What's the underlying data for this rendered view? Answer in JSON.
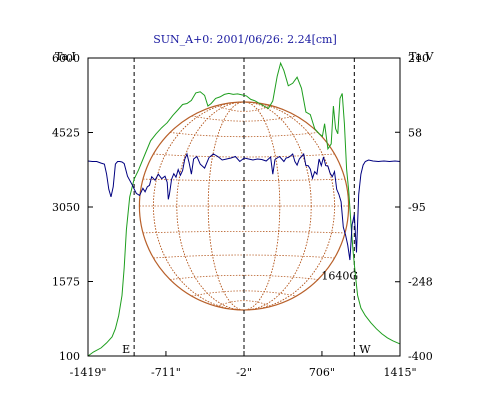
{
  "chart_data": {
    "type": "line",
    "title": "SUN_A+0: 2001/06/26: 2.24[cm]",
    "left_axis": {
      "label": "Ta,I",
      "range": [
        100,
        6000
      ],
      "ticks": [
        {
          "value": 6000,
          "label": "6000"
        },
        {
          "value": 4525,
          "label": "4525"
        },
        {
          "value": 3050,
          "label": "3050"
        },
        {
          "value": 1575,
          "label": "1575"
        },
        {
          "value": 100,
          "label": "100"
        }
      ]
    },
    "right_axis": {
      "label": "Ta,V",
      "range": [
        -400,
        210
      ],
      "ticks": [
        {
          "value": 210,
          "label": "210"
        },
        {
          "value": 58,
          "label": "58"
        },
        {
          "value": -95,
          "label": "-95"
        },
        {
          "value": -248,
          "label": "-248"
        },
        {
          "value": -400,
          "label": "-400"
        }
      ]
    },
    "x_axis": {
      "range": [
        -1419,
        1415
      ],
      "ticks": [
        {
          "value": -1419,
          "label": "-1419\""
        },
        {
          "value": -711,
          "label": "-711\""
        },
        {
          "value": -2,
          "label": "-2\""
        },
        {
          "value": 706,
          "label": "706\""
        },
        {
          "value": 1415,
          "label": "1415\""
        }
      ]
    },
    "markers": {
      "east_label": "E",
      "west_label": "W",
      "lines_x": [
        -1000,
        -2,
        1000
      ]
    },
    "annotations": [
      {
        "text": "1640G",
        "x": 1010,
        "y_right": -248
      }
    ],
    "solar_disk": {
      "center_x": -2,
      "radius": 950,
      "color": "#b8602a"
    },
    "series": [
      {
        "axis": "left",
        "color": "#1e9e1e",
        "x": [
          -1419,
          -1370,
          -1300,
          -1250,
          -1200,
          -1170,
          -1140,
          -1110,
          -1090,
          -1070,
          -1040,
          -1000,
          -960,
          -900,
          -850,
          -800,
          -750,
          -700,
          -650,
          -600,
          -560,
          -520,
          -480,
          -440,
          -400,
          -360,
          -330,
          -300,
          -260,
          -220,
          -180,
          -140,
          -100,
          -60,
          -20,
          20,
          60,
          100,
          140,
          180,
          220,
          260,
          300,
          330,
          360,
          400,
          440,
          480,
          520,
          560,
          600,
          640,
          680,
          710,
          730,
          760,
          790,
          810,
          830,
          850,
          870,
          890,
          910,
          930,
          950,
          970,
          990,
          1010,
          1030,
          1060,
          1100,
          1150,
          1200,
          1250,
          1300,
          1350,
          1415
        ],
        "values": [
          100,
          180,
          260,
          360,
          480,
          640,
          900,
          1300,
          1850,
          2600,
          3250,
          3600,
          3780,
          4100,
          4360,
          4500,
          4620,
          4720,
          4860,
          4980,
          5080,
          5100,
          5160,
          5310,
          5330,
          5260,
          5050,
          5100,
          5200,
          5230,
          5280,
          5300,
          5280,
          5290,
          5270,
          5250,
          5180,
          5150,
          5100,
          5050,
          5000,
          5150,
          5640,
          5900,
          5750,
          5450,
          5500,
          5620,
          5400,
          4930,
          4880,
          4600,
          4500,
          4450,
          4700,
          4200,
          4300,
          5050,
          4600,
          4500,
          5200,
          5300,
          4700,
          3800,
          3350,
          2700,
          2150,
          1700,
          1300,
          1050,
          900,
          760,
          640,
          540,
          460,
          400,
          340
        ]
      },
      {
        "axis": "left",
        "color": "#000080",
        "x": [
          -1419,
          -1380,
          -1340,
          -1300,
          -1270,
          -1250,
          -1230,
          -1210,
          -1190,
          -1170,
          -1150,
          -1130,
          -1110,
          -1090,
          -1060,
          -1020,
          -980,
          -950,
          -920,
          -900,
          -880,
          -860,
          -840,
          -810,
          -780,
          -750,
          -720,
          -700,
          -690,
          -680,
          -660,
          -640,
          -620,
          -600,
          -580,
          -560,
          -540,
          -520,
          -500,
          -480,
          -460,
          -430,
          -400,
          -360,
          -320,
          -280,
          -240,
          -200,
          -160,
          -120,
          -80,
          -40,
          0,
          40,
          80,
          120,
          160,
          200,
          240,
          260,
          280,
          300,
          320,
          340,
          360,
          380,
          400,
          420,
          440,
          460,
          480,
          500,
          520,
          540,
          560,
          580,
          600,
          620,
          640,
          660,
          680,
          700,
          720,
          740,
          760,
          780,
          800,
          820,
          840,
          860,
          880,
          900,
          920,
          940,
          960,
          980,
          1000,
          1020,
          1040,
          1060,
          1080,
          1100,
          1130,
          1170,
          1220,
          1270,
          1320,
          1370,
          1415
        ],
        "values": [
          3960,
          3950,
          3950,
          3920,
          3900,
          3700,
          3400,
          3250,
          3450,
          3900,
          3950,
          3950,
          3940,
          3910,
          3660,
          3500,
          3320,
          3280,
          3420,
          3350,
          3450,
          3480,
          3650,
          3580,
          3700,
          3610,
          3660,
          3540,
          3200,
          3300,
          3600,
          3710,
          3640,
          3790,
          3680,
          3770,
          4000,
          4100,
          3920,
          3700,
          4000,
          4050,
          3900,
          3820,
          4030,
          4100,
          4050,
          3980,
          4000,
          4020,
          4050,
          3950,
          4020,
          4000,
          3980,
          4000,
          3990,
          3960,
          4040,
          3700,
          3990,
          4020,
          4050,
          4000,
          3950,
          4020,
          4030,
          4060,
          4100,
          3950,
          3880,
          4000,
          4050,
          4100,
          3870,
          3870,
          3800,
          3620,
          3750,
          3700,
          4000,
          3870,
          4040,
          3870,
          3860,
          3720,
          3650,
          3750,
          3400,
          3300,
          3150,
          2650,
          2500,
          2300,
          2000,
          2700,
          2900,
          2150,
          3300,
          3700,
          3880,
          3950,
          3980,
          3960,
          3950,
          3960,
          3950,
          3960,
          3950
        ]
      }
    ]
  }
}
